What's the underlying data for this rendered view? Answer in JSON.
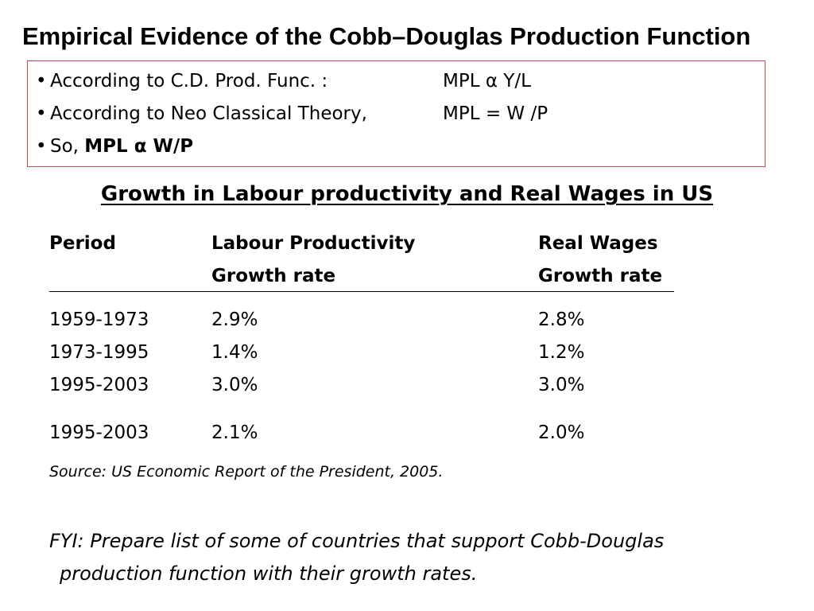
{
  "slide": {
    "title": "Empirical Evidence of the Cobb–Douglas Production Function"
  },
  "bullets": {
    "marker": "•",
    "items": [
      {
        "text": "According to C.D. Prod. Func. :",
        "rhs": "MPL α  Y/L"
      },
      {
        "text": "According to Neo Classical Theory,",
        "rhs": "MPL = W /P"
      },
      {
        "text": "So, ",
        "bold": "MPL α W/P"
      }
    ]
  },
  "table": {
    "heading": "Growth in Labour productivity and Real Wages in US",
    "headers": {
      "period": "Period",
      "labour_line1": "Labour Productivity",
      "labour_line2": "Growth rate",
      "wages_line1": "Real Wages",
      "wages_line2": "Growth rate"
    },
    "rows": [
      {
        "period": "1959-1973",
        "labour": "2.9%",
        "wages": "2.8%"
      },
      {
        "period": "1973-1995",
        "labour": "1.4%",
        "wages": "1.2%"
      },
      {
        "period": "1995-2003",
        "labour": "3.0%",
        "wages": "3.0%"
      },
      {
        "period": "1995-2003",
        "labour": "2.1%",
        "wages": "2.0%"
      }
    ]
  },
  "source": "Source: US Economic Report of the President, 2005.",
  "fyi": {
    "line1": "FYI: Prepare list of some of countries that support Cobb-Douglas",
    "line2": "production function with their growth rates."
  }
}
